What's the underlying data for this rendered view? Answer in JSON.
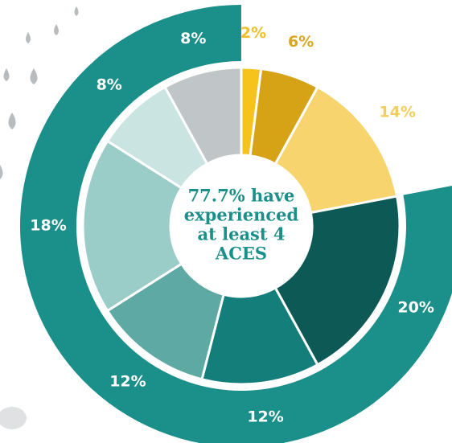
{
  "chart_data": {
    "type": "donut",
    "center_text": [
      "77.7% have",
      "experienced",
      "at least 4",
      "ACES"
    ],
    "values": [
      2,
      6,
      14,
      20,
      12,
      12,
      18,
      8,
      8
    ],
    "value_labels": [
      "2%",
      "6%",
      "14%",
      "20%",
      "12%",
      "12%",
      "18%",
      "8%",
      "8%"
    ],
    "colors": [
      "#f6c21c",
      "#d6a316",
      "#f8d46e",
      "#0c5956",
      "#147f7a",
      "#5ea9a4",
      "#9bcdc8",
      "#cae4e1",
      "#c0c5c7"
    ],
    "label_colors": [
      "#efbf27",
      "#d9a71c",
      "#f4cd60",
      "#ffffff",
      "#ffffff",
      "#ffffff",
      "#ffffff",
      "#ffffff",
      "#ffffff"
    ],
    "ring_color": "#1b8f89"
  }
}
